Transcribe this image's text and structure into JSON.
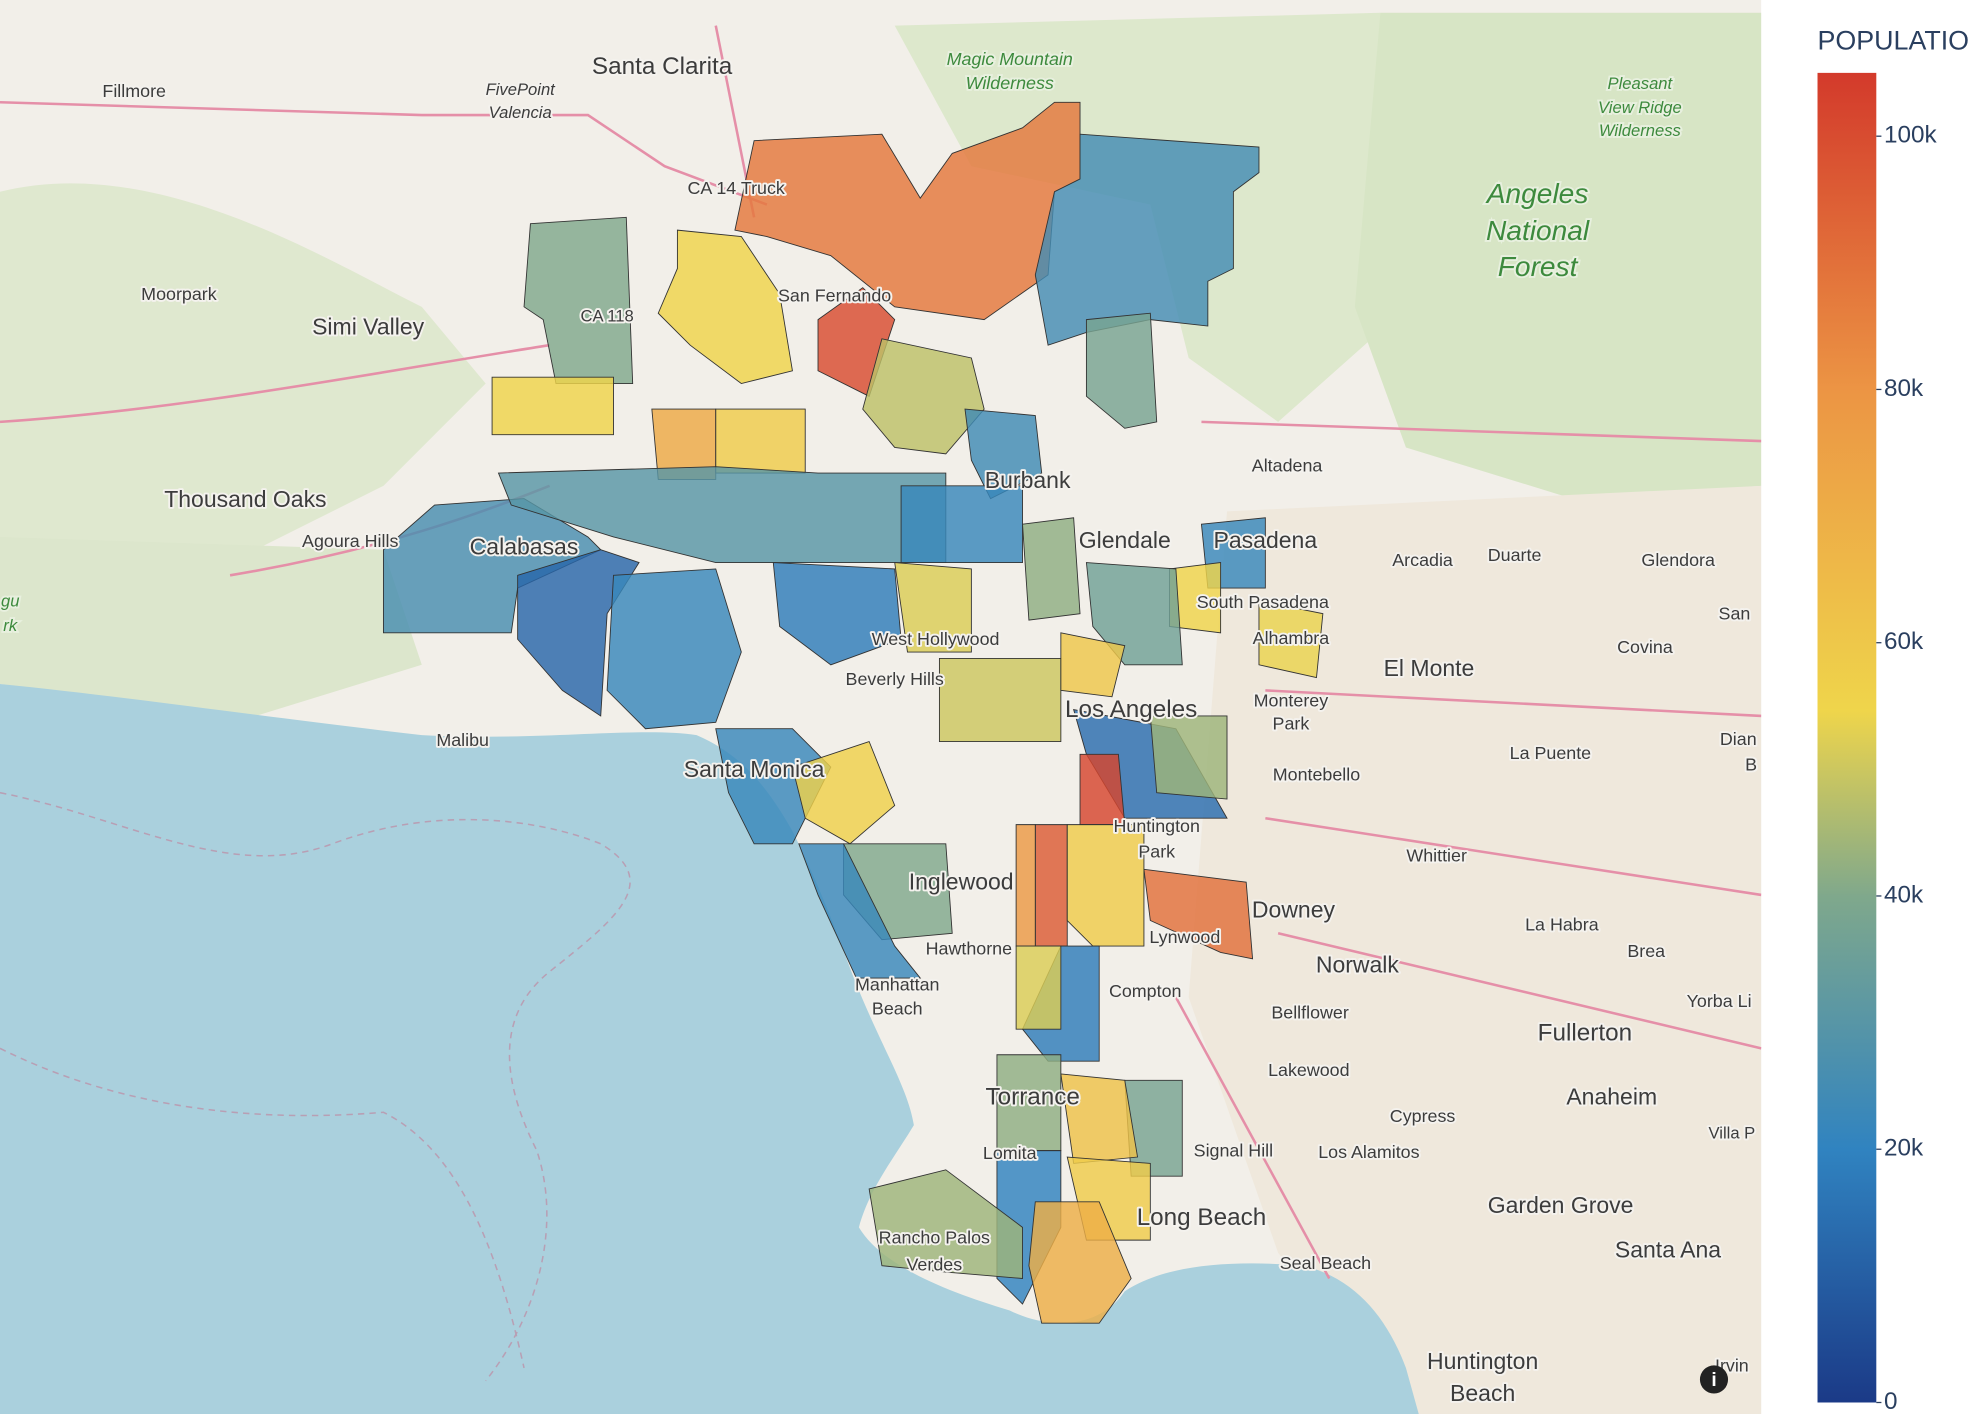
{
  "chart_data": {
    "type": "choropleth",
    "colorbar_title": "POPULATIO",
    "zlim": [
      0,
      105000
    ],
    "zticks": [
      {
        "value": 0,
        "label": "0"
      },
      {
        "value": 20000,
        "label": "20k"
      },
      {
        "value": 40000,
        "label": "40k"
      },
      {
        "value": 60000,
        "label": "60k"
      },
      {
        "value": 80000,
        "label": "80k"
      },
      {
        "value": 100000,
        "label": "100k"
      }
    ],
    "colorscale": [
      [
        0,
        "#1b3a87"
      ],
      [
        0.19,
        "#3083c0"
      ],
      [
        0.38,
        "#7fa88c"
      ],
      [
        0.52,
        "#efd54b"
      ],
      [
        0.76,
        "#ec9544"
      ],
      [
        1,
        "#d33a2b"
      ]
    ],
    "values": [
      88000,
      25000,
      38000,
      40000,
      55000,
      100000,
      55000,
      72000,
      58000,
      48000,
      26000,
      12000,
      22000,
      30000,
      24000,
      42000,
      22000,
      55000,
      54000,
      36000,
      18000,
      50000,
      60000,
      14000,
      102000,
      44000,
      22000,
      56000,
      40000,
      22000,
      96000,
      78000,
      58000,
      90000,
      18000,
      52000,
      38000,
      62000,
      42000,
      20000,
      58000,
      70000,
      44000,
      22000,
      52000
    ],
    "map_labels": [
      "Santa Clarita",
      "Fillmore",
      "FivePoint",
      "Valencia",
      "Magic Mountain",
      "Wilderness",
      "Pleasant",
      "View Ridge",
      "Wilderness",
      "Angeles",
      "National",
      "Forest",
      "CA 14 Truck",
      "Moorpark",
      "Simi Valley",
      "CA 118",
      "San Fernando",
      "Thousand Oaks",
      "Agoura Hills",
      "Calabasas",
      "Burbank",
      "Altadena",
      "Glendale",
      "Pasadena",
      "Arcadia",
      "Duarte",
      "Glendora",
      "South Pasadena",
      "Alhambra",
      "El Monte",
      "Covina",
      "San",
      "West Hollywood",
      "Beverly Hills",
      "Los Angeles",
      "Monterey",
      "Park",
      "Montebello",
      "La Puente",
      "Malibu",
      "Santa Monica",
      "Huntington",
      "Park",
      "Whittier",
      "Inglewood",
      "Downey",
      "La Habra",
      "Brea",
      "Hawthorne",
      "Lynwood",
      "Norwalk",
      "Manhattan",
      "Beach",
      "Compton",
      "Bellflower",
      "Fullerton",
      "Yorba Li",
      "Lakewood",
      "Anaheim",
      "Torrance",
      "Cypress",
      "Villa P",
      "Lomita",
      "Signal Hill",
      "Los Alamitos",
      "Long Beach",
      "Garden Grove",
      "Rancho Palos",
      "Verdes",
      "Seal Beach",
      "Santa Ana",
      "Huntington",
      "Beach",
      "Irvin",
      "Dian",
      "B",
      "gu",
      "rk"
    ]
  }
}
